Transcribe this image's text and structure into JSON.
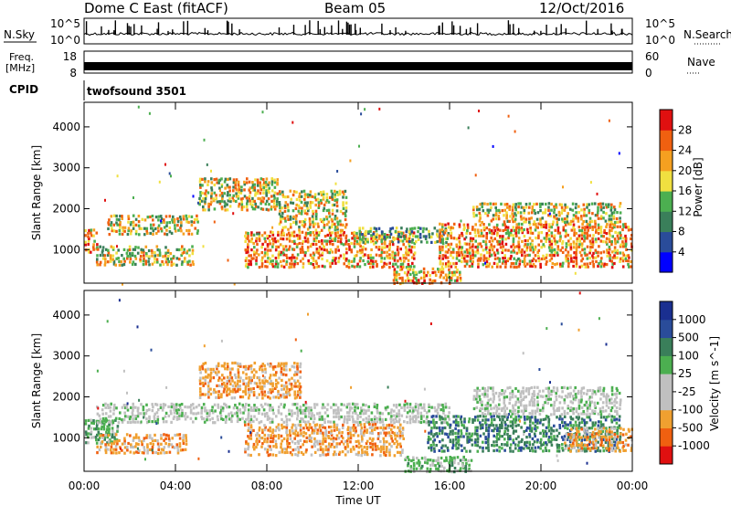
{
  "header": {
    "station": "Dome C East (fitACF)",
    "beam": "Beam 05",
    "date": "12/Oct/2016"
  },
  "noise_panel": {
    "left_label": "N.Sky",
    "left_ticks": [
      "10^5",
      "10^0"
    ],
    "right_ticks": [
      "10^5",
      "10^0"
    ],
    "right_label": "N.Search"
  },
  "freq_panel": {
    "left_label_line1": "Freq.",
    "left_label_line2": "[MHz]",
    "left_ticks": [
      "18",
      "8"
    ],
    "right_ticks": [
      "60",
      "0"
    ],
    "right_label": "Nave"
  },
  "cpid_panel": {
    "label": "CPID",
    "program": "twofsound 3501"
  },
  "time_axis": {
    "label": "Time UT",
    "ticks": [
      "00:00",
      "04:00",
      "08:00",
      "12:00",
      "16:00",
      "20:00",
      "00:00"
    ]
  },
  "colors": {
    "power_scale": [
      "#0000ff",
      "#2a4c9a",
      "#3a7f5a",
      "#4caf50",
      "#f0e040",
      "#f5a020",
      "#f06010",
      "#e01010"
    ],
    "velocity_scale": [
      "#e01010",
      "#f06010",
      "#f0a030",
      "#c0c0c0",
      "#c0c0c0",
      "#4caf50",
      "#3a7f5a",
      "#2a4c9a",
      "#1a2f90"
    ]
  },
  "chart_data": [
    {
      "type": "heatmap",
      "title": "",
      "xlabel": "",
      "ylabel": "Slant Range [km]",
      "xlim": [
        0,
        24
      ],
      "ylim": [
        180,
        4600
      ],
      "yticks": [
        "1000",
        "2000",
        "3000",
        "4000"
      ],
      "colorbar_label": "Power [dB]",
      "colorbar_ticks": [
        "4",
        "8",
        "12",
        "16",
        "20",
        "24",
        "28"
      ],
      "colorbar_range": [
        0,
        32
      ],
      "bands": [
        {
          "t0": 0.0,
          "t1": 0.6,
          "r0": 950,
          "r1": 1550,
          "level": "high"
        },
        {
          "t0": 0.5,
          "t1": 4.8,
          "r0": 650,
          "r1": 1150,
          "level": "mid"
        },
        {
          "t0": 1.0,
          "t1": 5.0,
          "r0": 1400,
          "r1": 1900,
          "level": "mid"
        },
        {
          "t0": 5.0,
          "t1": 8.5,
          "r0": 2000,
          "r1": 2800,
          "level": "mid"
        },
        {
          "t0": 7.0,
          "t1": 14.5,
          "r0": 600,
          "r1": 1500,
          "level": "high"
        },
        {
          "t0": 8.5,
          "t1": 11.5,
          "r0": 1500,
          "r1": 2500,
          "level": "mid"
        },
        {
          "t0": 12.0,
          "t1": 16.0,
          "r0": 1200,
          "r1": 1600,
          "level": "low"
        },
        {
          "t0": 13.5,
          "t1": 16.5,
          "r0": 200,
          "r1": 600,
          "level": "high"
        },
        {
          "t0": 15.5,
          "t1": 24.0,
          "r0": 600,
          "r1": 1700,
          "level": "high"
        },
        {
          "t0": 17.0,
          "t1": 23.5,
          "r0": 1700,
          "r1": 2200,
          "level": "mid"
        }
      ]
    },
    {
      "type": "heatmap",
      "title": "",
      "xlabel": "Time UT",
      "ylabel": "Slant Range [km]",
      "xlim": [
        0,
        24
      ],
      "ylim": [
        180,
        4600
      ],
      "yticks": [
        "1000",
        "2000",
        "3000",
        "4000"
      ],
      "colorbar_label": "Velocity [m s^-1]",
      "colorbar_ticks": [
        "1000",
        "500",
        "100",
        "25",
        "-25",
        "-100",
        "-500",
        "-1000"
      ],
      "bands": [
        {
          "t0": 0.0,
          "t1": 1.5,
          "r0": 900,
          "r1": 1500,
          "level": "green"
        },
        {
          "t0": 0.5,
          "t1": 4.5,
          "r0": 650,
          "r1": 1150,
          "level": "orange"
        },
        {
          "t0": 0.5,
          "t1": 16.0,
          "r0": 1400,
          "r1": 1900,
          "level": "grey"
        },
        {
          "t0": 5.0,
          "t1": 9.5,
          "r0": 2000,
          "r1": 2900,
          "level": "orange"
        },
        {
          "t0": 7.0,
          "t1": 14.0,
          "r0": 600,
          "r1": 1400,
          "level": "orange"
        },
        {
          "t0": 14.0,
          "t1": 17.0,
          "r0": 200,
          "r1": 600,
          "level": "green"
        },
        {
          "t0": 15.0,
          "t1": 23.5,
          "r0": 700,
          "r1": 1600,
          "level": "darkgreen"
        },
        {
          "t0": 17.0,
          "t1": 23.5,
          "r0": 1600,
          "r1": 2300,
          "level": "grey"
        },
        {
          "t0": 21.0,
          "t1": 24.0,
          "r0": 700,
          "r1": 1300,
          "level": "orange"
        }
      ]
    }
  ]
}
